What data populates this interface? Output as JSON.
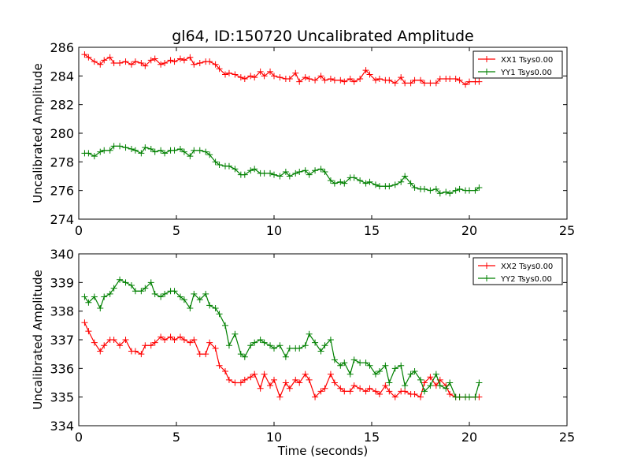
{
  "chart_data": [
    {
      "type": "line",
      "title": "gl64, ID:150720 Uncalibrated Amplitude",
      "xlabel": "",
      "ylabel": "Uncalibrated Amplitude",
      "xlim": [
        0,
        25
      ],
      "ylim": [
        274,
        286
      ],
      "xticks": [
        "0",
        "5",
        "10",
        "15",
        "20",
        "25"
      ],
      "yticks": [
        "274",
        "276",
        "278",
        "280",
        "282",
        "284",
        "286"
      ],
      "legend_position": "top-right",
      "x": [
        0.3,
        0.5,
        0.8,
        1.1,
        1.3,
        1.6,
        1.8,
        2.1,
        2.4,
        2.7,
        2.9,
        3.2,
        3.4,
        3.7,
        3.9,
        4.2,
        4.4,
        4.7,
        4.9,
        5.2,
        5.4,
        5.7,
        5.9,
        6.2,
        6.5,
        6.7,
        7.0,
        7.2,
        7.5,
        7.7,
        8.0,
        8.3,
        8.5,
        8.8,
        9.0,
        9.3,
        9.5,
        9.8,
        10.0,
        10.3,
        10.6,
        10.8,
        11.1,
        11.3,
        11.6,
        11.8,
        12.1,
        12.4,
        12.6,
        12.9,
        13.1,
        13.4,
        13.6,
        13.9,
        14.1,
        14.4,
        14.7,
        14.9,
        15.2,
        15.4,
        15.7,
        15.9,
        16.2,
        16.5,
        16.7,
        17.0,
        17.2,
        17.5,
        17.7,
        18.0,
        18.3,
        18.5,
        18.8,
        19.0,
        19.3,
        19.5,
        19.8,
        20.0,
        20.3,
        20.5
      ],
      "series": [
        {
          "name": "XX1 Tsys0.00",
          "color": "#ff0000",
          "values": [
            285.5,
            285.3,
            285.0,
            284.8,
            285.1,
            285.3,
            284.9,
            284.9,
            285.0,
            284.8,
            285.0,
            284.9,
            284.7,
            285.1,
            285.2,
            284.8,
            284.9,
            285.1,
            285.0,
            285.2,
            285.1,
            285.3,
            284.8,
            284.9,
            285.0,
            285.0,
            284.8,
            284.5,
            284.1,
            284.2,
            284.1,
            283.9,
            283.8,
            284.0,
            283.9,
            284.3,
            284.0,
            284.3,
            284.0,
            283.9,
            283.8,
            283.8,
            284.2,
            283.6,
            283.9,
            283.8,
            283.7,
            284.0,
            283.7,
            283.8,
            283.7,
            283.7,
            283.6,
            283.8,
            283.6,
            283.8,
            284.4,
            284.1,
            283.7,
            283.8,
            283.7,
            283.7,
            283.5,
            283.9,
            283.5,
            283.5,
            283.7,
            283.7,
            283.5,
            283.5,
            283.5,
            283.8,
            283.8,
            283.8,
            283.8,
            283.7,
            283.4,
            283.6,
            283.6,
            283.6
          ]
        },
        {
          "name": "YY1 Tsys0.00",
          "color": "#008000",
          "values": [
            278.6,
            278.6,
            278.4,
            278.7,
            278.8,
            278.8,
            279.1,
            279.1,
            279.0,
            278.9,
            278.8,
            278.6,
            279.0,
            278.9,
            278.7,
            278.8,
            278.6,
            278.8,
            278.8,
            278.9,
            278.7,
            278.4,
            278.8,
            278.8,
            278.7,
            278.5,
            278.0,
            277.8,
            277.7,
            277.7,
            277.5,
            277.1,
            277.1,
            277.4,
            277.5,
            277.2,
            277.2,
            277.2,
            277.1,
            277.0,
            277.3,
            277.0,
            277.2,
            277.3,
            277.4,
            277.1,
            277.4,
            277.5,
            277.3,
            276.7,
            276.5,
            276.6,
            276.5,
            276.9,
            276.9,
            276.7,
            276.5,
            276.6,
            276.4,
            276.3,
            276.3,
            276.3,
            276.4,
            276.6,
            277.0,
            276.5,
            276.2,
            276.1,
            276.1,
            276.0,
            276.1,
            275.8,
            275.9,
            275.8,
            276.0,
            276.1,
            276.0,
            276.0,
            276.0,
            276.2
          ]
        }
      ]
    },
    {
      "type": "line",
      "title": "",
      "xlabel": "Time (seconds)",
      "ylabel": "Uncalibrated Amplitude",
      "xlim": [
        0,
        25
      ],
      "ylim": [
        334,
        340
      ],
      "xticks": [
        "0",
        "5",
        "10",
        "15",
        "20",
        "25"
      ],
      "yticks": [
        "334",
        "335",
        "336",
        "337",
        "338",
        "339",
        "340"
      ],
      "legend_position": "top-right",
      "x": [
        0.3,
        0.5,
        0.8,
        1.1,
        1.3,
        1.6,
        1.8,
        2.1,
        2.4,
        2.7,
        2.9,
        3.2,
        3.4,
        3.7,
        3.9,
        4.2,
        4.4,
        4.7,
        4.9,
        5.2,
        5.4,
        5.7,
        5.9,
        6.2,
        6.5,
        6.7,
        7.0,
        7.2,
        7.5,
        7.7,
        8.0,
        8.3,
        8.5,
        8.8,
        9.0,
        9.3,
        9.5,
        9.8,
        10.0,
        10.3,
        10.6,
        10.8,
        11.1,
        11.3,
        11.6,
        11.8,
        12.1,
        12.4,
        12.6,
        12.9,
        13.1,
        13.4,
        13.6,
        13.9,
        14.1,
        14.4,
        14.7,
        14.9,
        15.2,
        15.4,
        15.7,
        15.9,
        16.2,
        16.5,
        16.7,
        17.0,
        17.2,
        17.5,
        17.7,
        18.0,
        18.3,
        18.5,
        18.8,
        19.0,
        19.3,
        19.5,
        19.8,
        20.0,
        20.3,
        20.5
      ],
      "series": [
        {
          "name": "XX2 Tsys0.00",
          "color": "#ff0000",
          "values": [
            337.6,
            337.3,
            336.9,
            336.6,
            336.8,
            337.0,
            337.0,
            336.8,
            337.0,
            336.6,
            336.6,
            336.5,
            336.8,
            336.8,
            336.9,
            337.1,
            337.0,
            337.1,
            337.0,
            337.1,
            337.0,
            336.9,
            337.0,
            336.5,
            336.5,
            336.9,
            336.7,
            336.1,
            335.9,
            335.6,
            335.5,
            335.5,
            335.6,
            335.7,
            335.8,
            335.3,
            335.8,
            335.4,
            335.6,
            335.0,
            335.5,
            335.3,
            335.6,
            335.5,
            335.8,
            335.6,
            335.0,
            335.2,
            335.3,
            335.8,
            335.5,
            335.3,
            335.2,
            335.2,
            335.4,
            335.3,
            335.2,
            335.3,
            335.2,
            335.1,
            335.4,
            335.2,
            335.0,
            335.2,
            335.2,
            335.1,
            335.1,
            335.0,
            335.5,
            335.7,
            335.4,
            335.6,
            335.4,
            335.1,
            335.0,
            335.0,
            335.0,
            335.0,
            335.0,
            335.0
          ]
        },
        {
          "name": "YY2 Tsys0.00",
          "color": "#008000",
          "values": [
            338.5,
            338.3,
            338.5,
            338.1,
            338.5,
            338.6,
            338.8,
            339.1,
            339.0,
            338.9,
            338.7,
            338.7,
            338.8,
            339.0,
            338.6,
            338.5,
            338.6,
            338.7,
            338.7,
            338.5,
            338.4,
            338.1,
            338.6,
            338.4,
            338.6,
            338.2,
            338.1,
            337.9,
            337.5,
            336.8,
            337.2,
            336.5,
            336.4,
            336.8,
            336.9,
            337.0,
            336.9,
            336.8,
            336.7,
            336.8,
            336.4,
            336.7,
            336.7,
            336.7,
            336.8,
            337.2,
            336.9,
            336.6,
            336.8,
            337.0,
            336.3,
            336.1,
            336.2,
            335.8,
            336.3,
            336.2,
            336.2,
            336.1,
            335.8,
            335.9,
            336.1,
            335.5,
            336.0,
            336.1,
            335.4,
            335.8,
            335.9,
            335.6,
            335.2,
            335.4,
            335.8,
            335.4,
            335.3,
            335.5,
            335.0,
            335.0,
            335.0,
            335.0,
            335.0,
            335.5
          ]
        }
      ]
    }
  ]
}
